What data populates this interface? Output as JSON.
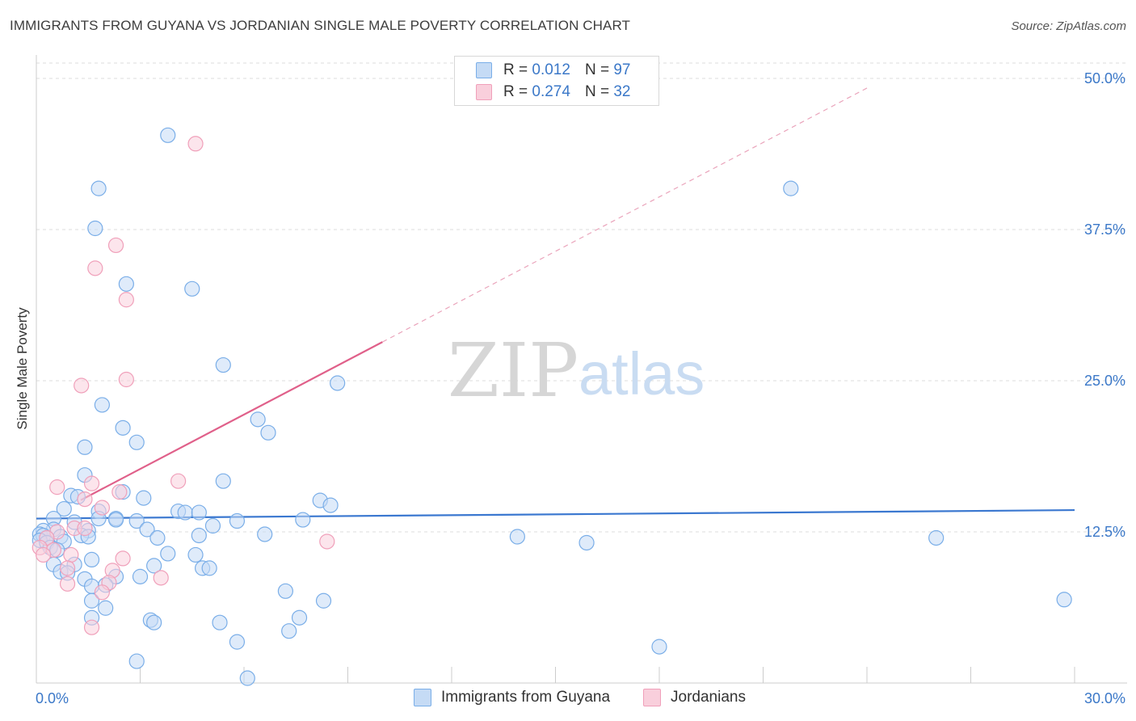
{
  "title": "IMMIGRANTS FROM GUYANA VS JORDANIAN SINGLE MALE POVERTY CORRELATION CHART",
  "source": "Source: ZipAtlas.com",
  "watermark": {
    "zip": "ZIP",
    "atlas": "atlas"
  },
  "legend": {
    "r_label": "R =",
    "n_label": "N =",
    "series": [
      {
        "name": "Immigrants from Guyana",
        "r": "0.012",
        "n": "97",
        "color": "#7aaee8",
        "fill": "#c5dbf5"
      },
      {
        "name": "Jordanians",
        "r": "0.274",
        "n": "32",
        "color": "#f0a0ba",
        "fill": "#f9cfdc"
      }
    ]
  },
  "chart_data": {
    "type": "scatter",
    "title": "IMMIGRANTS FROM GUYANA VS JORDANIAN SINGLE MALE POVERTY CORRELATION CHART",
    "xlabel": "",
    "ylabel": "Single Male Poverty",
    "xlim": [
      0,
      30
    ],
    "ylim": [
      0,
      50
    ],
    "x_tick_labels": [
      "0.0%",
      "30.0%"
    ],
    "y_ticks": [
      12.5,
      25.0,
      37.5,
      50.0
    ],
    "y_tick_labels": [
      "12.5%",
      "25.0%",
      "37.5%",
      "50.0%"
    ],
    "grid": true,
    "series": [
      {
        "name": "Immigrants from Guyana",
        "color": "#3b78d0",
        "trend": {
          "x": [
            0,
            30
          ],
          "y": [
            13.6,
            14.3
          ],
          "style": "solid"
        },
        "points": [
          [
            3.8,
            45.3
          ],
          [
            1.8,
            40.9
          ],
          [
            1.7,
            37.6
          ],
          [
            2.6,
            33.0
          ],
          [
            4.5,
            32.6
          ],
          [
            21.8,
            40.9
          ],
          [
            5.4,
            26.3
          ],
          [
            8.7,
            24.8
          ],
          [
            1.9,
            23.0
          ],
          [
            2.5,
            21.1
          ],
          [
            6.7,
            20.7
          ],
          [
            6.4,
            21.8
          ],
          [
            2.9,
            19.9
          ],
          [
            1.4,
            19.5
          ],
          [
            1.4,
            17.2
          ],
          [
            5.4,
            16.7
          ],
          [
            2.5,
            15.8
          ],
          [
            1.0,
            15.5
          ],
          [
            1.2,
            15.4
          ],
          [
            3.1,
            15.3
          ],
          [
            8.2,
            15.1
          ],
          [
            0.8,
            14.4
          ],
          [
            1.8,
            14.2
          ],
          [
            8.5,
            14.7
          ],
          [
            4.1,
            14.2
          ],
          [
            4.3,
            14.1
          ],
          [
            4.7,
            14.1
          ],
          [
            0.5,
            13.6
          ],
          [
            1.1,
            13.3
          ],
          [
            1.8,
            13.6
          ],
          [
            2.3,
            13.6
          ],
          [
            2.3,
            13.5
          ],
          [
            2.9,
            13.4
          ],
          [
            5.8,
            13.4
          ],
          [
            7.7,
            13.5
          ],
          [
            5.1,
            13.0
          ],
          [
            3.2,
            12.7
          ],
          [
            0.5,
            12.7
          ],
          [
            0.2,
            12.6
          ],
          [
            1.5,
            12.6
          ],
          [
            0.1,
            12.3
          ],
          [
            0.2,
            12.2
          ],
          [
            0.3,
            12.0
          ],
          [
            0.7,
            12.1
          ],
          [
            1.3,
            12.2
          ],
          [
            1.5,
            12.1
          ],
          [
            3.5,
            12.0
          ],
          [
            4.7,
            12.2
          ],
          [
            6.6,
            12.3
          ],
          [
            13.9,
            12.1
          ],
          [
            15.9,
            11.6
          ],
          [
            26.0,
            12.0
          ],
          [
            0.1,
            11.8
          ],
          [
            0.3,
            11.6
          ],
          [
            0.8,
            11.7
          ],
          [
            0.4,
            11.2
          ],
          [
            0.6,
            11.0
          ],
          [
            1.6,
            10.2
          ],
          [
            3.8,
            10.7
          ],
          [
            4.6,
            10.6
          ],
          [
            1.1,
            9.8
          ],
          [
            0.5,
            9.8
          ],
          [
            3.4,
            9.7
          ],
          [
            4.8,
            9.5
          ],
          [
            5.0,
            9.5
          ],
          [
            0.7,
            9.2
          ],
          [
            0.9,
            9.1
          ],
          [
            2.3,
            8.8
          ],
          [
            3.0,
            8.8
          ],
          [
            1.4,
            8.6
          ],
          [
            1.6,
            8.0
          ],
          [
            2.0,
            8.1
          ],
          [
            7.2,
            7.6
          ],
          [
            1.6,
            6.8
          ],
          [
            8.3,
            6.8
          ],
          [
            29.7,
            6.9
          ],
          [
            2.0,
            6.2
          ],
          [
            1.6,
            5.4
          ],
          [
            3.3,
            5.2
          ],
          [
            3.4,
            5.0
          ],
          [
            5.3,
            5.0
          ],
          [
            7.6,
            5.4
          ],
          [
            7.3,
            4.3
          ],
          [
            5.8,
            3.4
          ],
          [
            18.0,
            3.0
          ],
          [
            2.9,
            1.8
          ],
          [
            6.1,
            0.4
          ]
        ]
      },
      {
        "name": "Jordanians",
        "color": "#e0608a",
        "trend": {
          "x": [
            0,
            10
          ],
          "y": [
            13.2,
            28.2
          ],
          "style": "solid",
          "extended_to": [
            24,
            49.2
          ],
          "extended_style": "dashed"
        },
        "points": [
          [
            4.6,
            44.6
          ],
          [
            2.3,
            36.2
          ],
          [
            1.7,
            34.3
          ],
          [
            2.6,
            31.7
          ],
          [
            2.6,
            25.1
          ],
          [
            1.3,
            24.6
          ],
          [
            4.1,
            16.7
          ],
          [
            1.6,
            16.5
          ],
          [
            0.6,
            16.2
          ],
          [
            2.4,
            15.8
          ],
          [
            1.4,
            15.2
          ],
          [
            1.9,
            14.5
          ],
          [
            1.1,
            12.8
          ],
          [
            1.4,
            12.8
          ],
          [
            0.6,
            12.5
          ],
          [
            0.3,
            12.0
          ],
          [
            8.4,
            11.7
          ],
          [
            0.1,
            11.2
          ],
          [
            0.5,
            11.0
          ],
          [
            0.2,
            10.6
          ],
          [
            1.0,
            10.6
          ],
          [
            2.5,
            10.3
          ],
          [
            0.9,
            9.5
          ],
          [
            2.2,
            9.3
          ],
          [
            3.6,
            8.7
          ],
          [
            0.9,
            8.2
          ],
          [
            2.1,
            8.3
          ],
          [
            1.9,
            7.5
          ],
          [
            1.6,
            4.6
          ]
        ]
      }
    ]
  }
}
